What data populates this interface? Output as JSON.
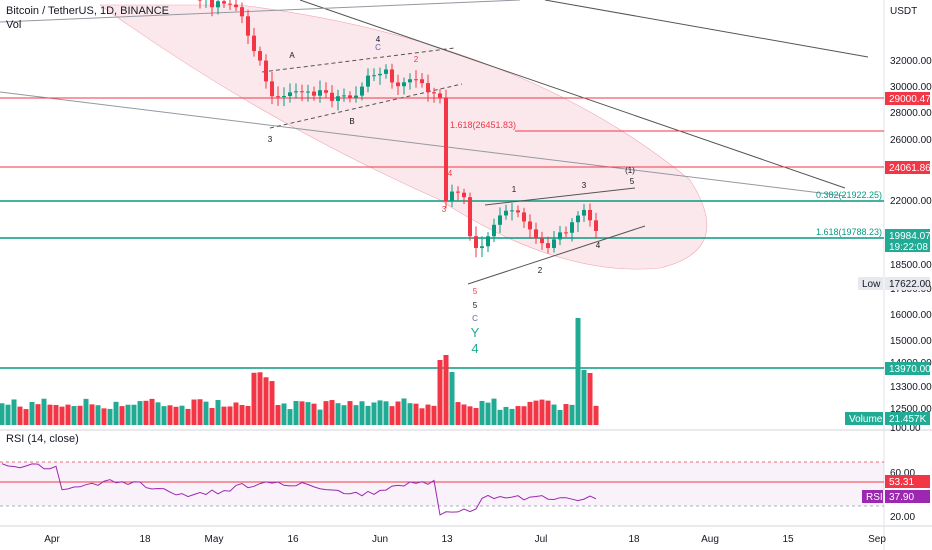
{
  "header": {
    "symbol": "Bitcoin / TetherUS, 1D, BINANCE",
    "volume_label": "Vol",
    "rsi_label": "RSI (14, close)"
  },
  "price_axis": {
    "unit": "USDT",
    "ticks": [
      "32000.00",
      "30000.00",
      "28000.00",
      "26000.00",
      "22000.00",
      "18500.00",
      "17500.00",
      "16000.00",
      "15000.00",
      "14000.00",
      "13300.00",
      "12500.00",
      "100.00"
    ],
    "rsi_ticks": [
      "60.00",
      "20.00"
    ]
  },
  "price_labels": [
    {
      "text": "29000.47",
      "color": "#f23645"
    },
    {
      "text": "24061.86",
      "color": "#f23645"
    },
    {
      "text": "19984.07",
      "color": "#22ab94"
    },
    {
      "text": "19:22:08",
      "color": "#22ab94"
    },
    {
      "text": "17622.00",
      "color": "#e7e9ee"
    },
    {
      "text": "13970.00",
      "color": "#22ab94"
    },
    {
      "text": "21.457K",
      "color": "#22ab94"
    },
    {
      "text": "53.31",
      "color": "#f23645"
    },
    {
      "text": "37.90",
      "color": "#9c27b0"
    }
  ],
  "tag_labels": {
    "low": "Low",
    "volume": "Volume",
    "rsi": "RSI"
  },
  "time_axis": [
    "Apr",
    "18",
    "May",
    "16",
    "Jun",
    "13",
    "Jul",
    "18",
    "Aug",
    "15",
    "Sep"
  ],
  "fib_labels": [
    "1.618(26451.83)",
    "0.382(21922.25)",
    "1.618(19788.23)"
  ],
  "wave_labels": [
    "A",
    "C",
    "B",
    "4",
    "2",
    "3",
    "4",
    "3",
    "1",
    "3",
    "(1)",
    "5",
    "2",
    "4",
    "5",
    "5",
    "C",
    "Y",
    "4"
  ],
  "chart_data": {
    "type": "candlestick",
    "price_range": [
      12000,
      33200
    ],
    "levels": [
      {
        "price": 29000.47,
        "color": "#f23645"
      },
      {
        "price": 24061.86,
        "color": "#f23645"
      },
      {
        "price": 21922.25,
        "color": "#089981"
      },
      {
        "price": 19788.23,
        "color": "#089981"
      },
      {
        "price": 13970.0,
        "color": "#089981"
      },
      {
        "price": 26451.83,
        "color": "#f23645"
      }
    ],
    "last_price": 19984.07,
    "low_price": 17622.0,
    "last_volume": "21.457K",
    "rsi": {
      "range": [
        10,
        80
      ],
      "value": 37.9,
      "level": 53.31
    }
  }
}
